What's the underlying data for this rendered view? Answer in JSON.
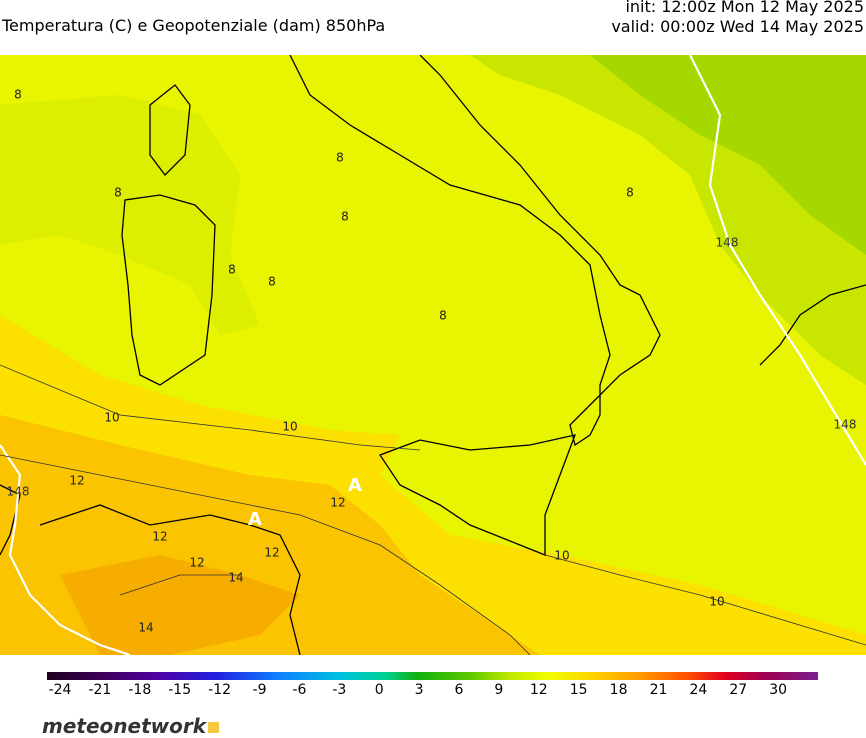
{
  "header": {
    "title": "Temperatura (C) e Geopotenziale (dam) 850hPa",
    "init": "init: 12:00z Mon 12 May 2025",
    "valid": "valid: 00:00z Wed 14 May 2025"
  },
  "map": {
    "labels": [
      "8",
      "8",
      "8",
      "8",
      "8",
      "8",
      "8",
      "8",
      "10",
      "10",
      "10",
      "10",
      "12",
      "12",
      "12",
      "12",
      "12",
      "14",
      "14",
      "148",
      "148",
      "148",
      "A",
      "A"
    ]
  },
  "colorbar": {
    "ticks": [
      -24,
      -21,
      -18,
      -15,
      -12,
      -9,
      -6,
      -3,
      0,
      3,
      6,
      9,
      12,
      15,
      18,
      21,
      24,
      27,
      30
    ]
  },
  "footer": {
    "logo": "meteonetwork"
  }
}
